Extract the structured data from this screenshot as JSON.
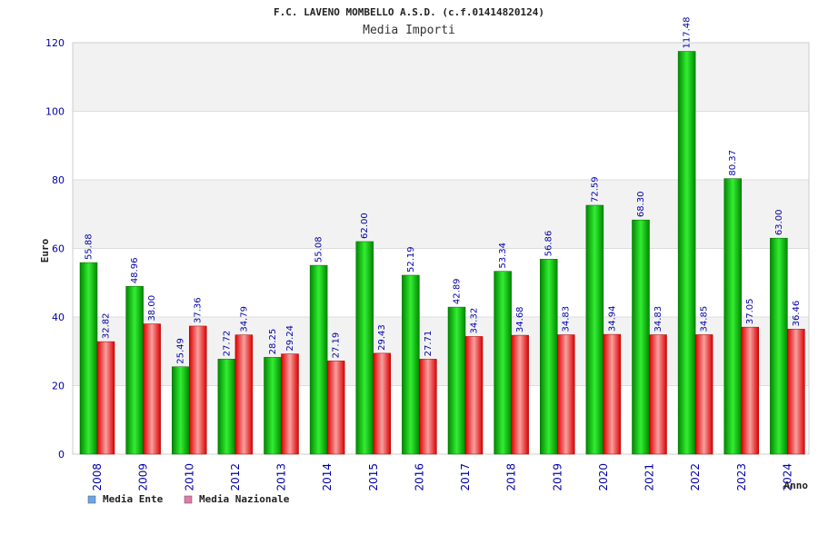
{
  "chart_data": {
    "type": "bar",
    "title": "F.C. LAVENO MOMBELLO A.S.D. (c.f.01414820124)",
    "subtitle": "Media Importi",
    "ylabel": "Euro",
    "xlabel": "Anno",
    "ylim": [
      0,
      120
    ],
    "yticks": [
      0,
      20,
      40,
      60,
      80,
      100,
      120
    ],
    "categories": [
      "2008",
      "2009",
      "2010",
      "2012",
      "2013",
      "2014",
      "2015",
      "2016",
      "2017",
      "2018",
      "2019",
      "2020",
      "2021",
      "2022",
      "2023",
      "2024"
    ],
    "series": [
      {
        "name": "Media Ente",
        "values": [
          55.88,
          48.96,
          25.49,
          27.72,
          28.25,
          55.08,
          62.0,
          52.19,
          42.89,
          53.34,
          56.86,
          72.59,
          68.3,
          117.48,
          80.37,
          63.0
        ],
        "labels": [
          "55.88",
          "48.96",
          "25.49",
          "27.72",
          "28.25",
          "55.08",
          "62.00",
          "52.19",
          "42.89",
          "53.34",
          "56.86",
          "72.59",
          "68.30",
          "117.48",
          "80.37",
          "63.00"
        ]
      },
      {
        "name": "Media Nazionale",
        "values": [
          32.82,
          38.0,
          37.36,
          34.79,
          29.24,
          27.19,
          29.43,
          27.71,
          34.32,
          34.68,
          34.83,
          34.94,
          34.83,
          34.85,
          37.05,
          36.46
        ],
        "labels": [
          "32.82",
          "38.00",
          "37.36",
          "34.79",
          "29.24",
          "27.19",
          "29.43",
          "27.71",
          "34.32",
          "34.68",
          "34.83",
          "34.94",
          "34.83",
          "34.85",
          "37.05",
          "36.46"
        ]
      }
    ],
    "legend": {
      "position": "bottom-left",
      "colors": [
        "#6aa6e8",
        "#e07aa8"
      ]
    },
    "bar_colors": {
      "ente_dark": "#008800",
      "ente_light": "#33ee33",
      "naz_dark": "#dd0000",
      "naz_light": "#f7a0a0"
    },
    "grid": true
  }
}
